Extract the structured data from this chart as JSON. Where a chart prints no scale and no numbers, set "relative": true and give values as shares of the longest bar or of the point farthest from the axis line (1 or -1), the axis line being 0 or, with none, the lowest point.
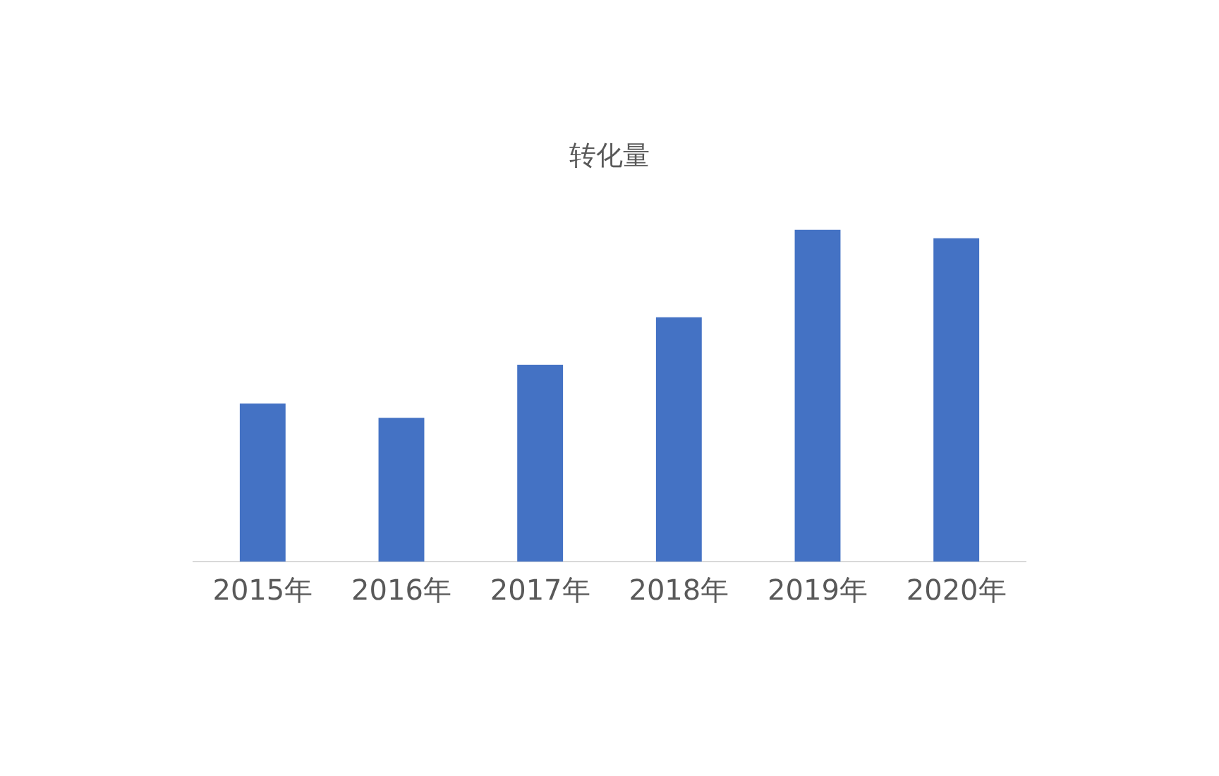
{
  "chart_data": {
    "type": "bar",
    "title": "转化量",
    "relative": true,
    "categories": [
      "2015年",
      "2016年",
      "2017年",
      "2018年",
      "2019年",
      "2020年"
    ],
    "values": [
      0.476,
      0.433,
      0.593,
      0.736,
      1,
      0.974
    ],
    "color": "#4472c4",
    "legend": false
  }
}
